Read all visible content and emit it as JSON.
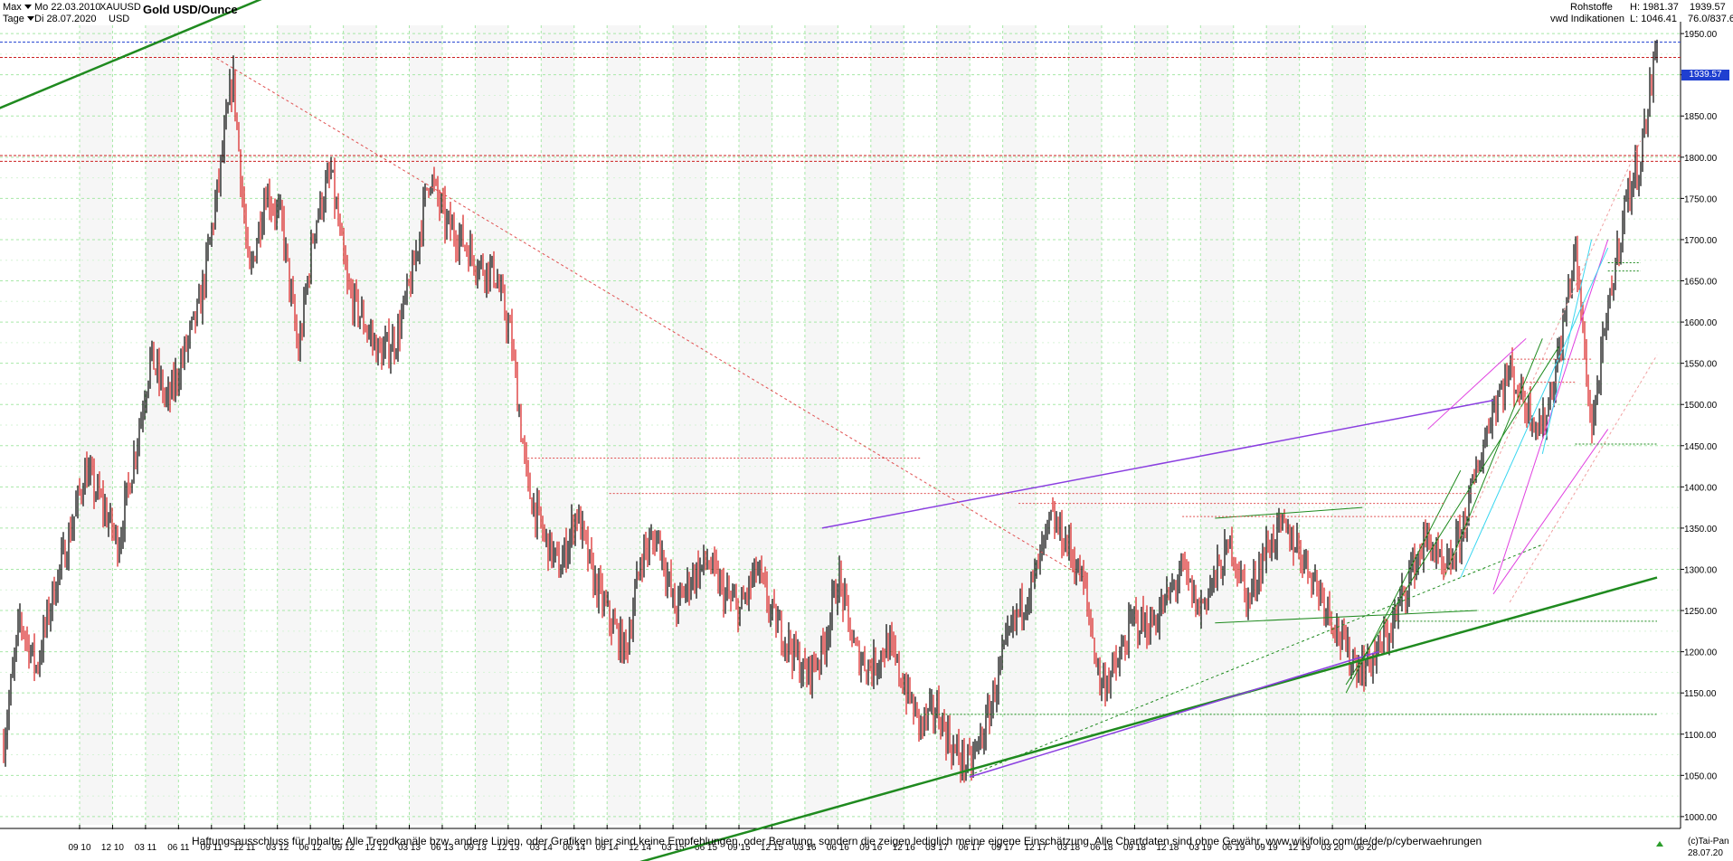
{
  "header": {
    "range_label": "Max",
    "interval_label": "Tage",
    "date_from": "Mo 22.03.2010",
    "date_to": "Di 28.07.2020",
    "symbol": "XAUUSD",
    "currency": "USD",
    "title": "Gold USD/Ounce"
  },
  "stats": {
    "category": "Rohstoffe",
    "source": "vwd Indikationen",
    "high_label": "H: 1981.37",
    "low_label": "L: 1046.41",
    "last_price": "1939.57",
    "range_pct": "76.0/837.6"
  },
  "footer": {
    "disclaimer": "Haftungsausschluss für Inhalte: Alle Trendkanäle bzw. andere Linien, oder Grafiken hier sind keine Empfehlungen, oder Beratung, sondern die zeigen lediglich meine eigene Einschätzung. Alle Chartdaten sind ohne Gewähr.  www.wikifolio.com/de/de/p/cyberwaehrungen",
    "copyright": "(c)Tai-Pan",
    "current_date": "28.07.20"
  },
  "chart_data": {
    "type": "candlestick",
    "title": "Gold USD/Ounce",
    "ylim": [
      990,
      1960
    ],
    "y_ticks": [
      1000,
      1050,
      1100,
      1150,
      1200,
      1250,
      1300,
      1350,
      1400,
      1450,
      1500,
      1550,
      1600,
      1650,
      1700,
      1750,
      1800,
      1850,
      1900,
      1950
    ],
    "x_ticks": [
      "09 10",
      "12 10",
      "03 11",
      "06 11",
      "09 11",
      "12 11",
      "03 12",
      "06 12",
      "09 12",
      "12 12",
      "03 13",
      "06 13",
      "09 13",
      "12 13",
      "03 14",
      "06 14",
      "09 14",
      "12 14",
      "03 15",
      "06 15",
      "09 15",
      "12 15",
      "03 16",
      "06 16",
      "09 16",
      "12 16",
      "03 17",
      "06 17",
      "09 17",
      "12 17",
      "03 18",
      "06 18",
      "09 18",
      "12 18",
      "03 19",
      "06 19",
      "09 19",
      "12 19",
      "03 20",
      "06 20"
    ],
    "grid": true,
    "last_price": 1939.57,
    "price_path": [
      [
        0,
        1090
      ],
      [
        1,
        1240
      ],
      [
        2,
        1180
      ],
      [
        3,
        1270
      ],
      [
        4,
        1340
      ],
      [
        5,
        1420
      ],
      [
        6,
        1380
      ],
      [
        7,
        1330
      ],
      [
        8,
        1440
      ],
      [
        9,
        1560
      ],
      [
        10,
        1500
      ],
      [
        11,
        1560
      ],
      [
        12,
        1620
      ],
      [
        13,
        1750
      ],
      [
        14,
        1900
      ],
      [
        15,
        1650
      ],
      [
        16,
        1760
      ],
      [
        17,
        1720
      ],
      [
        18,
        1560
      ],
      [
        19,
        1720
      ],
      [
        20,
        1780
      ],
      [
        21,
        1640
      ],
      [
        22,
        1600
      ],
      [
        23,
        1560
      ],
      [
        24,
        1580
      ],
      [
        25,
        1660
      ],
      [
        26,
        1780
      ],
      [
        27,
        1720
      ],
      [
        28,
        1700
      ],
      [
        29,
        1670
      ],
      [
        30,
        1660
      ],
      [
        31,
        1580
      ],
      [
        32,
        1400
      ],
      [
        33,
        1340
      ],
      [
        34,
        1300
      ],
      [
        35,
        1370
      ],
      [
        36,
        1290
      ],
      [
        37,
        1240
      ],
      [
        38,
        1200
      ],
      [
        39,
        1320
      ],
      [
        40,
        1340
      ],
      [
        41,
        1250
      ],
      [
        42,
        1290
      ],
      [
        43,
        1310
      ],
      [
        44,
        1270
      ],
      [
        45,
        1250
      ],
      [
        46,
        1300
      ],
      [
        47,
        1240
      ],
      [
        48,
        1210
      ],
      [
        49,
        1170
      ],
      [
        50,
        1200
      ],
      [
        51,
        1290
      ],
      [
        52,
        1200
      ],
      [
        53,
        1180
      ],
      [
        54,
        1210
      ],
      [
        55,
        1160
      ],
      [
        56,
        1110
      ],
      [
        57,
        1130
      ],
      [
        58,
        1080
      ],
      [
        59,
        1060
      ],
      [
        60,
        1110
      ],
      [
        61,
        1190
      ],
      [
        62,
        1250
      ],
      [
        63,
        1290
      ],
      [
        64,
        1360
      ],
      [
        65,
        1330
      ],
      [
        66,
        1280
      ],
      [
        67,
        1160
      ],
      [
        68,
        1180
      ],
      [
        69,
        1240
      ],
      [
        70,
        1230
      ],
      [
        71,
        1260
      ],
      [
        72,
        1300
      ],
      [
        73,
        1250
      ],
      [
        74,
        1290
      ],
      [
        75,
        1330
      ],
      [
        76,
        1260
      ],
      [
        77,
        1320
      ],
      [
        78,
        1350
      ],
      [
        79,
        1330
      ],
      [
        80,
        1290
      ],
      [
        81,
        1250
      ],
      [
        82,
        1200
      ],
      [
        83,
        1180
      ],
      [
        84,
        1200
      ],
      [
        85,
        1240
      ],
      [
        86,
        1300
      ],
      [
        87,
        1340
      ],
      [
        88,
        1290
      ],
      [
        89,
        1340
      ],
      [
        90,
        1420
      ],
      [
        91,
        1500
      ],
      [
        92,
        1540
      ],
      [
        93,
        1500
      ],
      [
        94,
        1470
      ],
      [
        95,
        1560
      ],
      [
        96,
        1690
      ],
      [
        97,
        1470
      ],
      [
        98,
        1610
      ],
      [
        99,
        1740
      ],
      [
        100,
        1800
      ],
      [
        101,
        1940
      ]
    ],
    "horizontal_lines": [
      {
        "y": 1939.57,
        "color": "#1f3fd0",
        "style": "dotted"
      },
      {
        "y": 1921,
        "color": "#cc2222",
        "style": "dotted"
      },
      {
        "y": 1802,
        "color": "#cc2222",
        "style": "dotted"
      },
      {
        "y": 1795,
        "color": "#cc2222",
        "style": "dotted"
      }
    ],
    "colors": {
      "candle": "#000000",
      "candle_down": "#d81e1e",
      "grid": "#a8e8a8",
      "trend_green": "#1f8a1f",
      "trend_purple": "#8a3fe0",
      "trend_magenta": "#e040e0",
      "trend_cyan": "#3ad6f0",
      "level_red": "#e05050"
    }
  }
}
